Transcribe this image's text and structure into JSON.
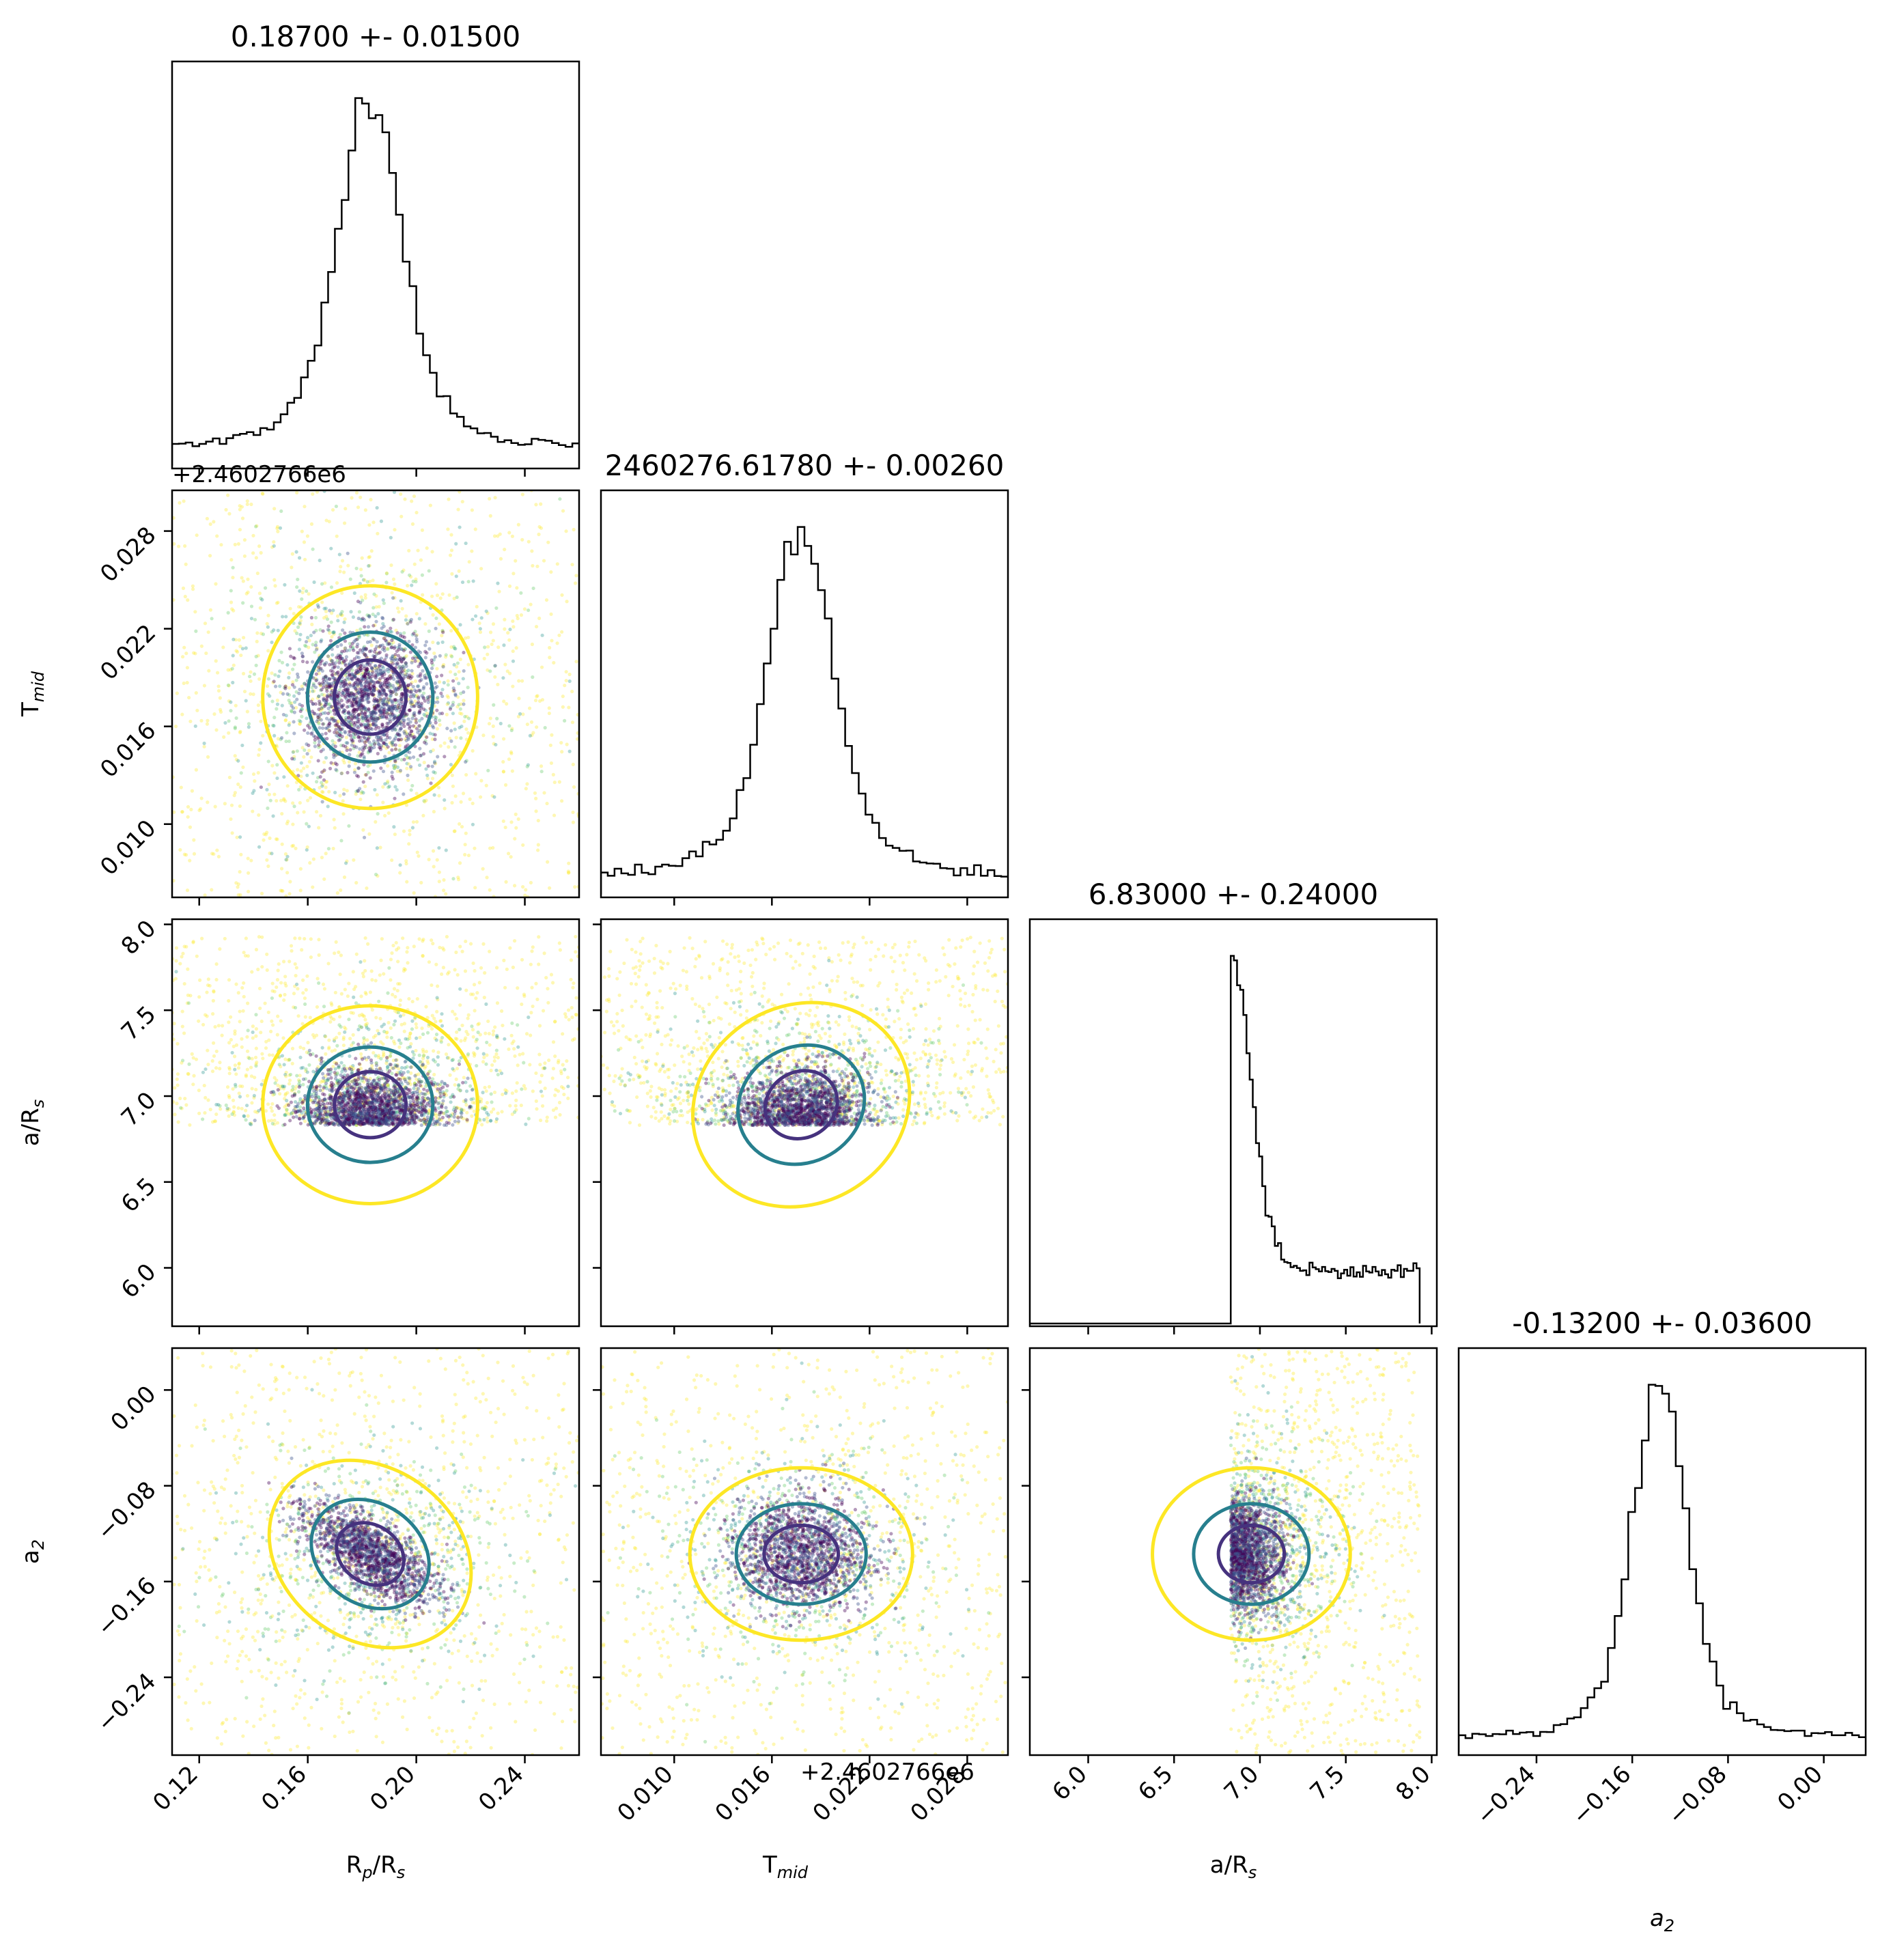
{
  "chart_data": {
    "type": "scatter",
    "kind": "corner-plot",
    "parameters": [
      "Rp/Rs",
      "Tmid",
      "a/Rs",
      "a2"
    ],
    "titles": [
      "0.18700 +- 0.01500",
      "2460276.61780 +- 0.00260",
      "6.83000 +- 0.24000",
      "-0.13200 +- 0.03600"
    ],
    "axis_labels": {
      "rp": {
        "main": "R",
        "sub1": "p",
        "mid": "/R",
        "sub2": "s"
      },
      "tmid": {
        "main": "T",
        "sub1": "mid"
      },
      "ars": {
        "main": "a/R",
        "sub1": "s"
      },
      "a2": {
        "main": "a",
        "sub1": "2"
      }
    },
    "offset_text": "+2.4602766e6",
    "axes": {
      "rp": {
        "range": [
          0.11,
          0.26
        ],
        "ticks": [
          0.12,
          0.16,
          0.2,
          0.24
        ],
        "tick_labels": [
          "0.12",
          "0.16",
          "0.20",
          "0.24"
        ]
      },
      "tmid": {
        "range": [
          0.0055,
          0.0305
        ],
        "ticks": [
          0.01,
          0.016,
          0.022,
          0.028
        ],
        "tick_labels": [
          "0.010",
          "0.016",
          "0.022",
          "0.028"
        ]
      },
      "ars": {
        "range": [
          5.66,
          8.03
        ],
        "ticks": [
          6.0,
          6.5,
          7.0,
          7.5,
          8.0
        ],
        "tick_labels": [
          "6.0",
          "6.5",
          "7.0",
          "7.5",
          "8.0"
        ]
      },
      "a2": {
        "range": [
          -0.305,
          0.035
        ],
        "ticks": [
          -0.24,
          -0.16,
          -0.08,
          0.0
        ],
        "tick_labels": [
          "−0.24",
          "−0.16",
          "−0.08",
          "0.00"
        ]
      }
    },
    "distributions": {
      "rp": {
        "peak": 0.183,
        "sigma": 0.011
      },
      "tmid": {
        "peak": 0.0178,
        "sigma": 0.0019
      },
      "ars": {
        "lower_bound": 6.83,
        "upper_bound": 7.93,
        "peak": 6.86
      },
      "a2": {
        "peak": -0.137,
        "sigma": 0.02
      }
    },
    "contour_levels": [
      "inner",
      "middle",
      "outer"
    ],
    "colors": {
      "hist": "#000000",
      "inner": "#46327e",
      "middle": "#277f8e",
      "outer": "#fde725",
      "points": [
        "#440154",
        "#3b528b",
        "#21918c",
        "#5ec962",
        "#fde725"
      ]
    },
    "grid": false,
    "legend": "none"
  }
}
